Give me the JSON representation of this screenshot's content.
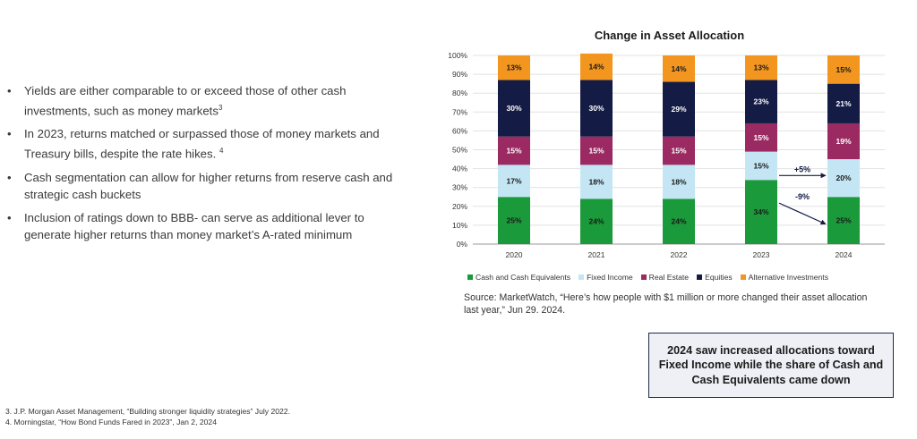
{
  "bullets": [
    {
      "text": "Yields are either comparable to or exceed those of other cash investments, such as money markets",
      "sup": "3"
    },
    {
      "text": "In 2023, returns matched or surpassed those of money markets and Treasury bills, despite the rate hikes. ",
      "sup": "4"
    },
    {
      "text": "Cash segmentation can allow for higher returns from reserve cash and strategic cash buckets",
      "sup": ""
    },
    {
      "text": "Inclusion of ratings down to BBB- can serve as additional lever to generate higher returns than money market’s A-rated minimum",
      "sup": ""
    }
  ],
  "bullet_symbol": "•",
  "footnotes": [
    "3. J.P. Morgan Asset Management, “Building stronger liquidity strategies” July 2022.",
    "4. Morningstar, “How Bond Funds Fared in 2023”, Jan 2, 2024"
  ],
  "chart_data": {
    "type": "bar",
    "stacked": true,
    "title": "Change in Asset Allocation",
    "categories": [
      "2020",
      "2021",
      "2022",
      "2023",
      "2024"
    ],
    "ylim": [
      0,
      100
    ],
    "yticks": [
      "0%",
      "10%",
      "20%",
      "30%",
      "40%",
      "50%",
      "60%",
      "70%",
      "80%",
      "90%",
      "100%"
    ],
    "grid": true,
    "legend_position": "bottom",
    "series": [
      {
        "name": "Cash and Cash Equivalents",
        "color": "#1a9a3a",
        "label_color": "#1a1a1a",
        "values": [
          25,
          24,
          24,
          34,
          25
        ]
      },
      {
        "name": "Fixed Income",
        "color": "#c4e6f4",
        "label_color": "#1a1a1a",
        "values": [
          17,
          18,
          18,
          15,
          20
        ]
      },
      {
        "name": "Real Estate",
        "color": "#9b2a63",
        "label_color": "#ffffff",
        "values": [
          15,
          15,
          15,
          15,
          19
        ]
      },
      {
        "name": "Equities",
        "color": "#141b45",
        "label_color": "#ffffff",
        "values": [
          30,
          30,
          29,
          23,
          21
        ]
      },
      {
        "name": "Alternative Investments",
        "color": "#f39620",
        "label_color": "#1a1a1a",
        "values": [
          13,
          14,
          14,
          13,
          15
        ]
      }
    ],
    "annotations": [
      {
        "text": "+5%",
        "from": "2023",
        "to": "2024",
        "series": "Fixed Income"
      },
      {
        "text": "-9%",
        "from": "2023",
        "to": "2024",
        "series": "Cash and Cash Equivalents"
      }
    ],
    "arrow_color": "#141b45"
  },
  "source": "Source: MarketWatch, “Here’s how people with $1 million or more changed their asset allocation last year,” Jun 29. 2024.",
  "callout": "2024 saw increased allocations toward Fixed Income while the share of Cash and Cash Equivalents came down"
}
